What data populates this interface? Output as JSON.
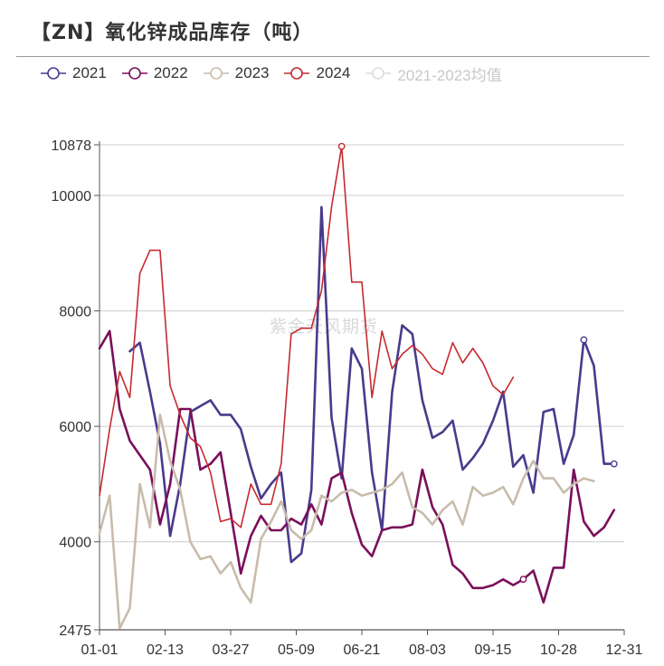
{
  "chart_data": {
    "type": "line",
    "title": "【ZN】氧化锌成品库存（吨）",
    "watermark": "紫金天风期货",
    "x_tick_labels": [
      "01-01",
      "02-13",
      "03-27",
      "05-09",
      "06-21",
      "08-03",
      "09-15",
      "10-28",
      "12-31"
    ],
    "y_tick_labels": [
      "2475",
      "4000",
      "6000",
      "8000",
      "10000",
      "10878"
    ],
    "ylim": [
      2475,
      10878
    ],
    "grid": true,
    "legend": "top-left",
    "series": [
      {
        "name": "2021",
        "color": "#4a3a8c",
        "stroke_width": 2.6,
        "start_index": 3,
        "values": [
          7300,
          7450,
          6600,
          5700,
          4100,
          5000,
          6250,
          6350,
          6450,
          6200,
          6200,
          5950,
          5300,
          4750,
          5000,
          5200,
          3650,
          3800,
          4900,
          9800,
          6150,
          5100,
          7350,
          7000,
          5200,
          4200,
          6600,
          7750,
          7600,
          6450,
          5800,
          5900,
          6100,
          5250,
          5450,
          5700,
          6100,
          6600,
          5300,
          5500,
          4850,
          6250,
          6300,
          5350,
          5850,
          7500,
          7050,
          5350,
          5350
        ],
        "markers": [
          45,
          48
        ]
      },
      {
        "name": "2022",
        "color": "#7a0f5a",
        "stroke_width": 2.6,
        "start_index": 0,
        "values": [
          7350,
          7650,
          6300,
          5750,
          5500,
          5250,
          4300,
          5000,
          6300,
          6300,
          5250,
          5350,
          5550,
          4500,
          3450,
          4100,
          4450,
          4200,
          4200,
          4400,
          4300,
          4650,
          4300,
          5100,
          5200,
          4500,
          3950,
          3750,
          4200,
          4250,
          4250,
          4300,
          5250,
          4600,
          4300,
          3600,
          3450,
          3200,
          3200,
          3250,
          3350,
          3250,
          3350,
          3500,
          2950,
          3550,
          3550,
          5250,
          4350,
          4100,
          4250,
          4550
        ],
        "markers": [
          42
        ]
      },
      {
        "name": "2023",
        "color": "#c8bcac",
        "stroke_width": 2.6,
        "start_index": 0,
        "values": [
          4150,
          4800,
          2500,
          2850,
          5000,
          4250,
          6200,
          5400,
          4900,
          4000,
          3700,
          3750,
          3450,
          3650,
          3200,
          2950,
          4050,
          4350,
          4700,
          4200,
          4050,
          4200,
          4800,
          4700,
          4850,
          4900,
          4800,
          4850,
          4900,
          5000,
          5200,
          4600,
          4500,
          4300,
          4550,
          4700,
          4300,
          4950,
          4800,
          4850,
          4950,
          4650,
          5100,
          5400,
          5100,
          5100,
          4850,
          5000,
          5100,
          5050
        ],
        "markers": []
      },
      {
        "name": "2024",
        "color": "#c62a30",
        "stroke_width": 1.6,
        "start_index": 0,
        "values": [
          4800,
          5950,
          6950,
          6500,
          8650,
          9050,
          9050,
          6700,
          6200,
          5800,
          5650,
          5200,
          4350,
          4400,
          4250,
          5000,
          4650,
          4650,
          5350,
          7600,
          7700,
          7700,
          8350,
          9800,
          10850,
          8500,
          8500,
          6500,
          7650,
          7000,
          7250,
          7400,
          7250,
          7000,
          6900,
          7450,
          7100,
          7350,
          7100,
          6700,
          6550,
          6850
        ],
        "markers": [
          24
        ]
      },
      {
        "name": "2021-2023均值",
        "color": "#dcdcdc",
        "stroke_width": 1.6,
        "start_index": 0,
        "values": [],
        "markers": []
      }
    ]
  }
}
